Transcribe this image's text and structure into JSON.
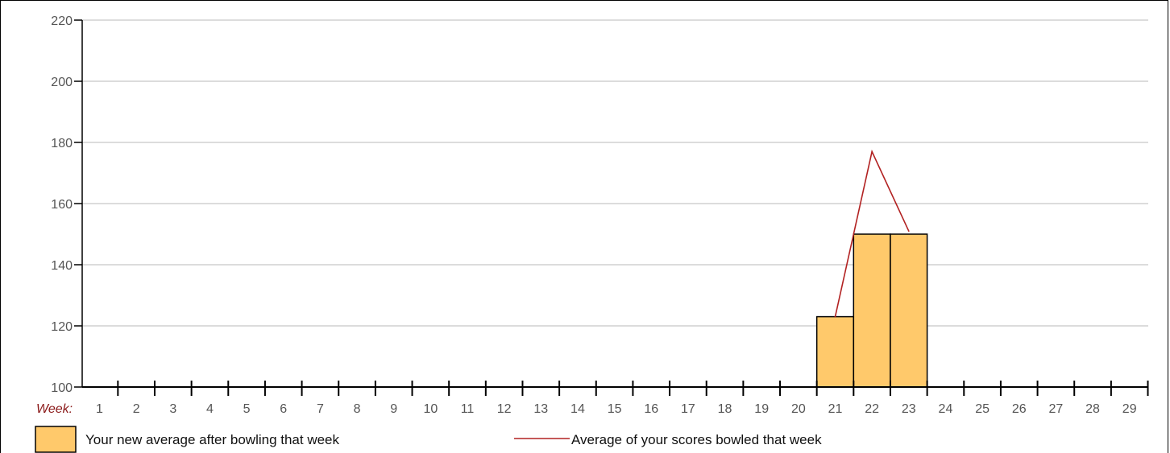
{
  "chart_data": {
    "type": "bar",
    "x_axis_prefix": "Week:",
    "categories": [
      "1",
      "2",
      "3",
      "4",
      "5",
      "6",
      "7",
      "8",
      "9",
      "10",
      "11",
      "12",
      "13",
      "14",
      "15",
      "16",
      "17",
      "18",
      "19",
      "20",
      "21",
      "22",
      "23",
      "24",
      "25",
      "26",
      "27",
      "28",
      "29"
    ],
    "y_ticks": [
      100,
      120,
      140,
      160,
      180,
      200,
      220
    ],
    "ylim": [
      100,
      220
    ],
    "grid": true,
    "bars": {
      "name": "Your new average after bowling that week",
      "color": "#ffc96b",
      "points": [
        {
          "week": "21",
          "value": 123
        },
        {
          "week": "22",
          "value": 150
        },
        {
          "week": "23",
          "value": 150
        }
      ]
    },
    "line": {
      "name": "Average of your scores bowled that week",
      "color": "#b22222",
      "points": [
        {
          "week": "21",
          "value": 123
        },
        {
          "week": "22",
          "value": 177
        },
        {
          "week": "23",
          "value": 151
        }
      ]
    },
    "legend_position": "bottom"
  }
}
